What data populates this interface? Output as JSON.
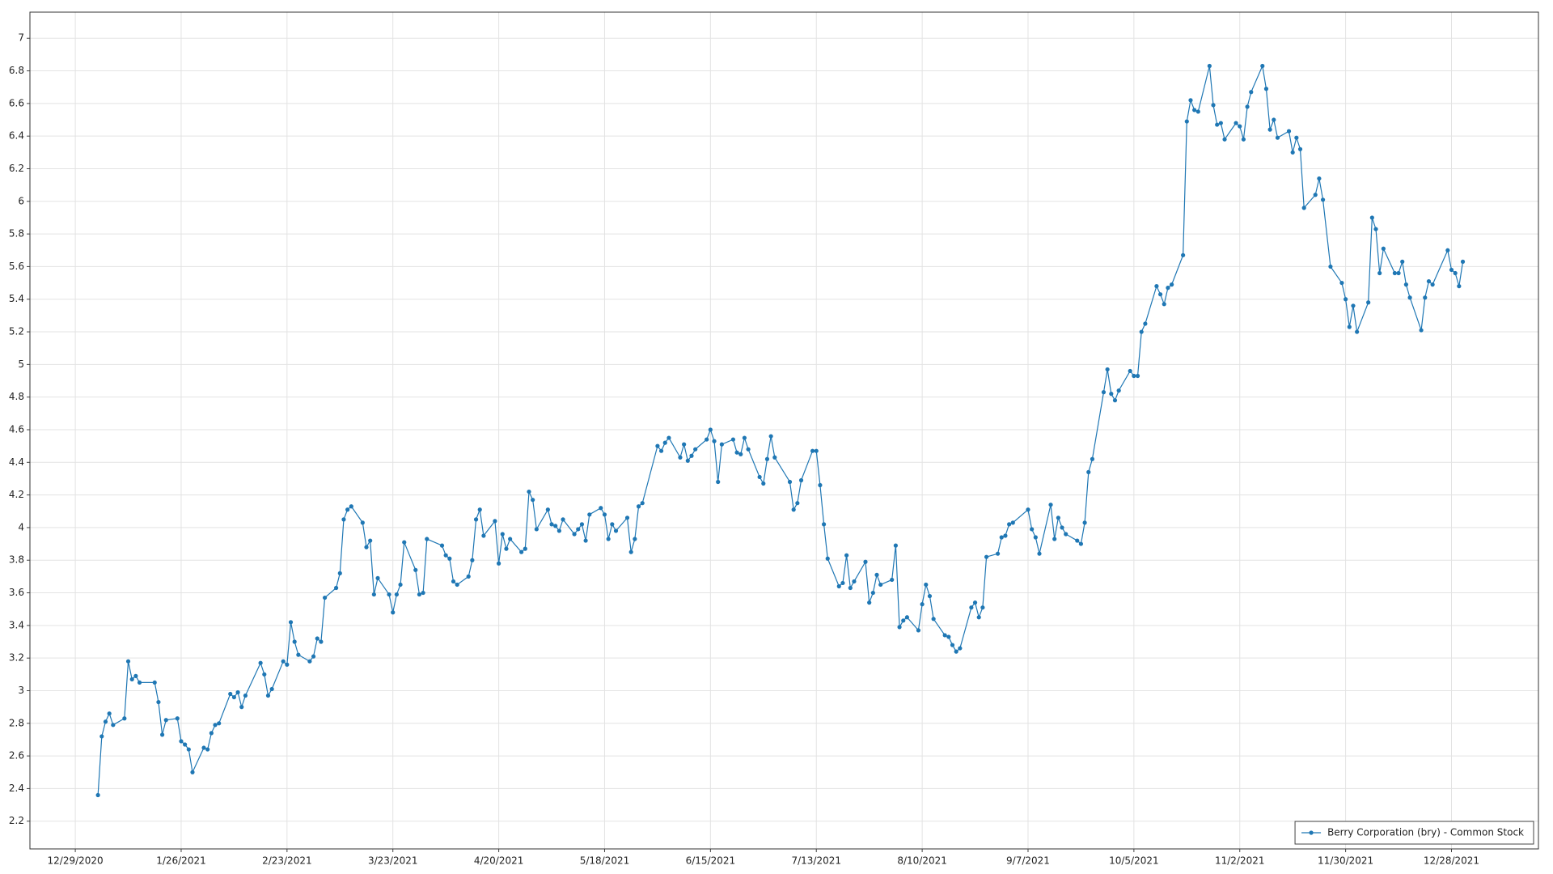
{
  "chart_data": {
    "type": "line",
    "x": [
      "1/4/2021",
      "1/5/2021",
      "1/6/2021",
      "1/7/2021",
      "1/8/2021",
      "1/11/2021",
      "1/12/2021",
      "1/13/2021",
      "1/14/2021",
      "1/15/2021",
      "1/19/2021",
      "1/20/2021",
      "1/21/2021",
      "1/22/2021",
      "1/25/2021",
      "1/26/2021",
      "1/27/2021",
      "1/28/2021",
      "1/29/2021",
      "2/1/2021",
      "2/2/2021",
      "2/3/2021",
      "2/4/2021",
      "2/5/2021",
      "2/8/2021",
      "2/9/2021",
      "2/10/2021",
      "2/11/2021",
      "2/12/2021",
      "2/16/2021",
      "2/17/2021",
      "2/18/2021",
      "2/19/2021",
      "2/22/2021",
      "2/23/2021",
      "2/24/2021",
      "2/25/2021",
      "2/26/2021",
      "3/1/2021",
      "3/2/2021",
      "3/3/2021",
      "3/4/2021",
      "3/5/2021",
      "3/8/2021",
      "3/9/2021",
      "3/10/2021",
      "3/11/2021",
      "3/12/2021",
      "3/15/2021",
      "3/16/2021",
      "3/17/2021",
      "3/18/2021",
      "3/19/2021",
      "3/22/2021",
      "3/23/2021",
      "3/24/2021",
      "3/25/2021",
      "3/26/2021",
      "3/29/2021",
      "3/30/2021",
      "3/31/2021",
      "4/1/2021",
      "4/5/2021",
      "4/6/2021",
      "4/7/2021",
      "4/8/2021",
      "4/9/2021",
      "4/12/2021",
      "4/13/2021",
      "4/14/2021",
      "4/15/2021",
      "4/16/2021",
      "4/19/2021",
      "4/20/2021",
      "4/21/2021",
      "4/22/2021",
      "4/23/2021",
      "4/26/2021",
      "4/27/2021",
      "4/28/2021",
      "4/29/2021",
      "4/30/2021",
      "5/3/2021",
      "5/4/2021",
      "5/5/2021",
      "5/6/2021",
      "5/7/2021",
      "5/10/2021",
      "5/11/2021",
      "5/12/2021",
      "5/13/2021",
      "5/14/2021",
      "5/17/2021",
      "5/18/2021",
      "5/19/2021",
      "5/20/2021",
      "5/21/2021",
      "5/24/2021",
      "5/25/2021",
      "5/26/2021",
      "5/27/2021",
      "5/28/2021",
      "6/1/2021",
      "6/2/2021",
      "6/3/2021",
      "6/4/2021",
      "6/7/2021",
      "6/8/2021",
      "6/9/2021",
      "6/10/2021",
      "6/11/2021",
      "6/14/2021",
      "6/15/2021",
      "6/16/2021",
      "6/17/2021",
      "6/18/2021",
      "6/21/2021",
      "6/22/2021",
      "6/23/2021",
      "6/24/2021",
      "6/25/2021",
      "6/28/2021",
      "6/29/2021",
      "6/30/2021",
      "7/1/2021",
      "7/2/2021",
      "7/6/2021",
      "7/7/2021",
      "7/8/2021",
      "7/9/2021",
      "7/12/2021",
      "7/13/2021",
      "7/14/2021",
      "7/15/2021",
      "7/16/2021",
      "7/19/2021",
      "7/20/2021",
      "7/21/2021",
      "7/22/2021",
      "7/23/2021",
      "7/26/2021",
      "7/27/2021",
      "7/28/2021",
      "7/29/2021",
      "7/30/2021",
      "8/2/2021",
      "8/3/2021",
      "8/4/2021",
      "8/5/2021",
      "8/6/2021",
      "8/9/2021",
      "8/10/2021",
      "8/11/2021",
      "8/12/2021",
      "8/13/2021",
      "8/16/2021",
      "8/17/2021",
      "8/18/2021",
      "8/19/2021",
      "8/20/2021",
      "8/23/2021",
      "8/24/2021",
      "8/25/2021",
      "8/26/2021",
      "8/27/2021",
      "8/30/2021",
      "8/31/2021",
      "9/1/2021",
      "9/2/2021",
      "9/3/2021",
      "9/7/2021",
      "9/8/2021",
      "9/9/2021",
      "9/10/2021",
      "9/13/2021",
      "9/14/2021",
      "9/15/2021",
      "9/16/2021",
      "9/17/2021",
      "9/20/2021",
      "9/21/2021",
      "9/22/2021",
      "9/23/2021",
      "9/24/2021",
      "9/27/2021",
      "9/28/2021",
      "9/29/2021",
      "9/30/2021",
      "10/1/2021",
      "10/4/2021",
      "10/5/2021",
      "10/6/2021",
      "10/7/2021",
      "10/8/2021",
      "10/11/2021",
      "10/12/2021",
      "10/13/2021",
      "10/14/2021",
      "10/15/2021",
      "10/18/2021",
      "10/19/2021",
      "10/20/2021",
      "10/21/2021",
      "10/22/2021",
      "10/25/2021",
      "10/26/2021",
      "10/27/2021",
      "10/28/2021",
      "10/29/2021",
      "11/1/2021",
      "11/2/2021",
      "11/3/2021",
      "11/4/2021",
      "11/5/2021",
      "11/8/2021",
      "11/9/2021",
      "11/10/2021",
      "11/11/2021",
      "11/12/2021",
      "11/15/2021",
      "11/16/2021",
      "11/17/2021",
      "11/18/2021",
      "11/19/2021",
      "11/22/2021",
      "11/23/2021",
      "11/24/2021",
      "11/26/2021",
      "11/29/2021",
      "11/30/2021",
      "12/1/2021",
      "12/2/2021",
      "12/3/2021",
      "12/6/2021",
      "12/7/2021",
      "12/8/2021",
      "12/9/2021",
      "12/10/2021",
      "12/13/2021",
      "12/14/2021",
      "12/15/2021",
      "12/16/2021",
      "12/17/2021",
      "12/20/2021",
      "12/21/2021",
      "12/22/2021",
      "12/23/2021",
      "12/27/2021",
      "12/28/2021",
      "12/29/2021",
      "12/30/2021",
      "12/31/2021"
    ],
    "series": [
      {
        "name": "Berry Corporation (bry) - Common Stock",
        "color": "#1f77b4",
        "values": [
          2.36,
          2.72,
          2.81,
          2.86,
          2.79,
          2.83,
          3.18,
          3.07,
          3.09,
          3.05,
          3.05,
          2.93,
          2.73,
          2.82,
          2.83,
          2.69,
          2.67,
          2.64,
          2.5,
          2.65,
          2.64,
          2.74,
          2.79,
          2.8,
          2.98,
          2.96,
          2.99,
          2.9,
          2.97,
          3.17,
          3.1,
          2.97,
          3.01,
          3.18,
          3.16,
          3.42,
          3.3,
          3.22,
          3.18,
          3.21,
          3.32,
          3.3,
          3.57,
          3.63,
          3.72,
          4.05,
          4.11,
          4.13,
          4.03,
          3.88,
          3.92,
          3.59,
          3.69,
          3.59,
          3.48,
          3.59,
          3.65,
          3.91,
          3.74,
          3.59,
          3.6,
          3.93,
          3.89,
          3.83,
          3.81,
          3.67,
          3.65,
          3.7,
          3.8,
          4.05,
          4.11,
          3.95,
          4.04,
          3.78,
          3.96,
          3.87,
          3.93,
          3.85,
          3.87,
          4.22,
          4.17,
          3.99,
          4.11,
          4.02,
          4.01,
          3.98,
          4.05,
          3.96,
          3.99,
          4.02,
          3.92,
          4.08,
          4.12,
          4.08,
          3.93,
          4.02,
          3.98,
          4.06,
          3.85,
          3.93,
          4.13,
          4.15,
          4.5,
          4.47,
          4.52,
          4.55,
          4.43,
          4.51,
          4.41,
          4.44,
          4.48,
          4.54,
          4.6,
          4.53,
          4.28,
          4.51,
          4.54,
          4.46,
          4.45,
          4.55,
          4.48,
          4.31,
          4.27,
          4.42,
          4.56,
          4.43,
          4.28,
          4.11,
          4.15,
          4.29,
          4.47,
          4.47,
          4.26,
          4.02,
          3.81,
          3.64,
          3.66,
          3.83,
          3.63,
          3.67,
          3.79,
          3.54,
          3.6,
          3.71,
          3.65,
          3.68,
          3.89,
          3.39,
          3.43,
          3.45,
          3.37,
          3.53,
          3.65,
          3.58,
          3.44,
          3.34,
          3.33,
          3.28,
          3.24,
          3.26,
          3.51,
          3.54,
          3.45,
          3.51,
          3.82,
          3.84,
          3.94,
          3.95,
          4.02,
          4.03,
          4.11,
          3.99,
          3.94,
          3.84,
          4.14,
          3.93,
          4.06,
          4.0,
          3.96,
          3.92,
          3.9,
          4.03,
          4.34,
          4.42,
          4.83,
          4.97,
          4.82,
          4.78,
          4.84,
          4.96,
          4.93,
          4.93,
          5.2,
          5.25,
          5.48,
          5.43,
          5.37,
          5.47,
          5.49,
          5.67,
          6.49,
          6.62,
          6.56,
          6.55,
          6.83,
          6.59,
          6.47,
          6.48,
          6.38,
          6.48,
          6.46,
          6.38,
          6.58,
          6.67,
          6.83,
          6.69,
          6.44,
          6.5,
          6.39,
          6.43,
          6.3,
          6.39,
          6.32,
          5.96,
          6.04,
          6.14,
          6.01,
          5.6,
          5.5,
          5.4,
          5.23,
          5.36,
          5.2,
          5.38,
          5.9,
          5.83,
          5.56,
          5.71,
          5.56,
          5.56,
          5.63,
          5.49,
          5.41,
          5.21,
          5.41,
          5.51,
          5.49,
          5.7,
          5.58,
          5.56,
          5.48,
          5.63
        ]
      }
    ],
    "xlim": [
      "12/17/2020",
      "1/20/2022"
    ],
    "xticks": [
      "12/29/2020",
      "1/26/2021",
      "2/23/2021",
      "3/23/2021",
      "4/20/2021",
      "5/18/2021",
      "6/15/2021",
      "7/13/2021",
      "8/10/2021",
      "9/7/2021",
      "10/5/2021",
      "11/2/2021",
      "11/30/2021",
      "12/28/2021"
    ],
    "ylim": [
      2.03,
      7.16
    ],
    "yticks": [
      2.2,
      2.4,
      2.6,
      2.8,
      3,
      3.2,
      3.4,
      3.6,
      3.8,
      4,
      4.2,
      4.4,
      4.6,
      4.8,
      5,
      5.2,
      5.4,
      5.6,
      5.8,
      6,
      6.2,
      6.4,
      6.6,
      6.8,
      7
    ],
    "grid": true,
    "legend": "lower-right"
  }
}
